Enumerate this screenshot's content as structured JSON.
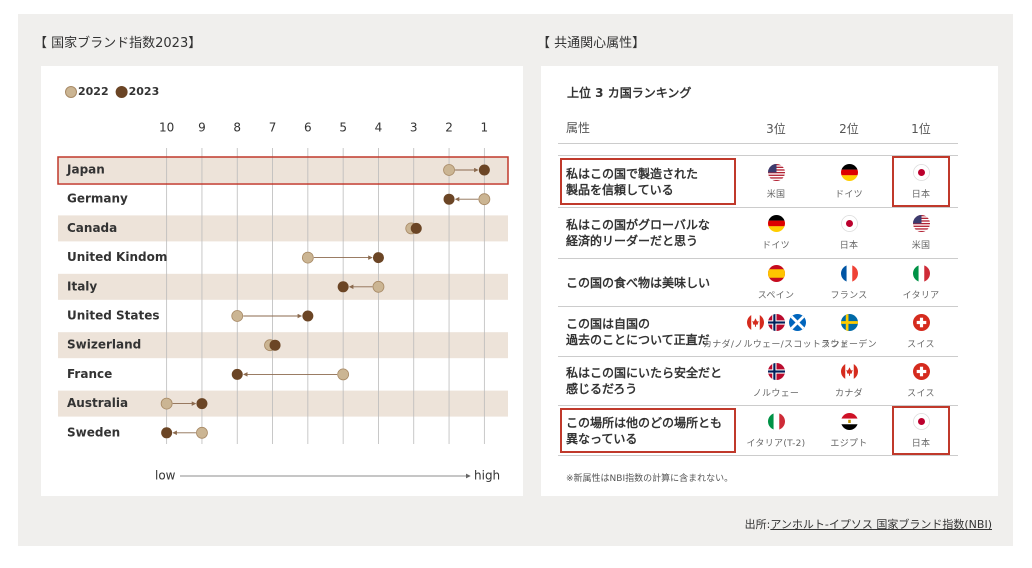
{
  "chart_data": {
    "type": "dumbbell",
    "title": "【 国家ブランド指数2023】",
    "categories": [
      "Japan",
      "Germany",
      "Canada",
      "United Kindom",
      "Italy",
      "United States",
      "Swizerland",
      "France",
      "Australia",
      "Sweden"
    ],
    "series": [
      {
        "name": "2022",
        "color": "#cbb593",
        "values": [
          2,
          1,
          3,
          6,
          4,
          8,
          7,
          5,
          10,
          9
        ]
      },
      {
        "name": "2023",
        "color": "#6b4525",
        "values": [
          1,
          2,
          3,
          4,
          5,
          6,
          7,
          8,
          9,
          10
        ]
      }
    ],
    "xlim": [
      10.5,
      0.5
    ],
    "xticks": [
      10,
      9,
      8,
      7,
      6,
      5,
      4,
      3,
      2,
      1
    ],
    "x_axis_low": "low",
    "x_axis_high": "high",
    "grid": true
  },
  "panel2": {
    "title": "【 共通関心属性】",
    "subtitle": "上位 3 カ国ランキング",
    "header": [
      "属性",
      "3位",
      "2位",
      "1位"
    ],
    "rows": [
      {
        "attribute": "私はこの国で製造された\n製品を信頼している",
        "cells": [
          "米国",
          "ドイツ",
          "日本"
        ]
      },
      {
        "attribute": "私はこの国がグローバルな\n経済的リーダーだと思う",
        "cells": [
          "ドイツ",
          "日本",
          "米国"
        ]
      },
      {
        "attribute": "この国の食べ物は美味しい",
        "cells": [
          "スペイン",
          "フランス",
          "イタリア"
        ]
      },
      {
        "attribute": "この国は自国の\n過去のことについて正直だ",
        "cells": [
          "カナダ/ノルウェー/スコットランド",
          "スウェーデン",
          "スイス"
        ]
      },
      {
        "attribute": "私はこの国にいたら安全だと\n感じるだろう",
        "cells": [
          "ノルウェー",
          "カナダ",
          "スイス"
        ]
      },
      {
        "attribute": "この場所は他のどの場所とも\n異なっている",
        "cells": [
          "イタリア(T-2)",
          "エジプト",
          "日本"
        ]
      }
    ],
    "note": "※新属性はNBI指数の計算に含まれない。"
  },
  "source": {
    "label": "出所:",
    "link": "アンホルト-イプソス 国家ブランド指数(NBI)"
  }
}
